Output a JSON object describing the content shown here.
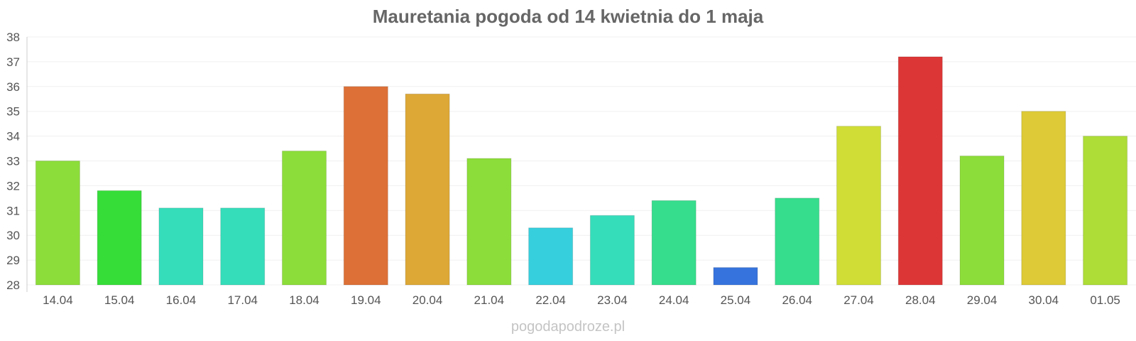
{
  "chart_data": {
    "type": "bar",
    "title": "Mauretania pogoda od 14 kwietnia do 1 maja",
    "xlabel": "",
    "ylabel": "",
    "ylim": [
      28,
      38
    ],
    "yticks": [
      28,
      29,
      30,
      31,
      32,
      33,
      34,
      35,
      36,
      37,
      38
    ],
    "grid": true,
    "categories": [
      "14.04",
      "15.04",
      "16.04",
      "17.04",
      "18.04",
      "19.04",
      "20.04",
      "21.04",
      "22.04",
      "23.04",
      "24.04",
      "25.04",
      "26.04",
      "27.04",
      "28.04",
      "29.04",
      "30.04",
      "01.05"
    ],
    "values": [
      33.0,
      31.8,
      31.1,
      31.1,
      33.4,
      36.0,
      35.7,
      33.1,
      30.3,
      30.8,
      31.4,
      28.7,
      31.5,
      34.4,
      37.2,
      33.2,
      35.0,
      34.0
    ],
    "colors": [
      "#8cdd39",
      "#36dd39",
      "#36ddbb",
      "#36ddbb",
      "#8cdd39",
      "#dd7036",
      "#dda836",
      "#8cdd39",
      "#36cfdd",
      "#36ddbb",
      "#36dd8c",
      "#3673dd",
      "#36dd8c",
      "#cfdd36",
      "#dd3636",
      "#8cdd39",
      "#ddca36",
      "#addd36"
    ]
  },
  "footer": {
    "watermark": "pogodapodroze.pl"
  }
}
